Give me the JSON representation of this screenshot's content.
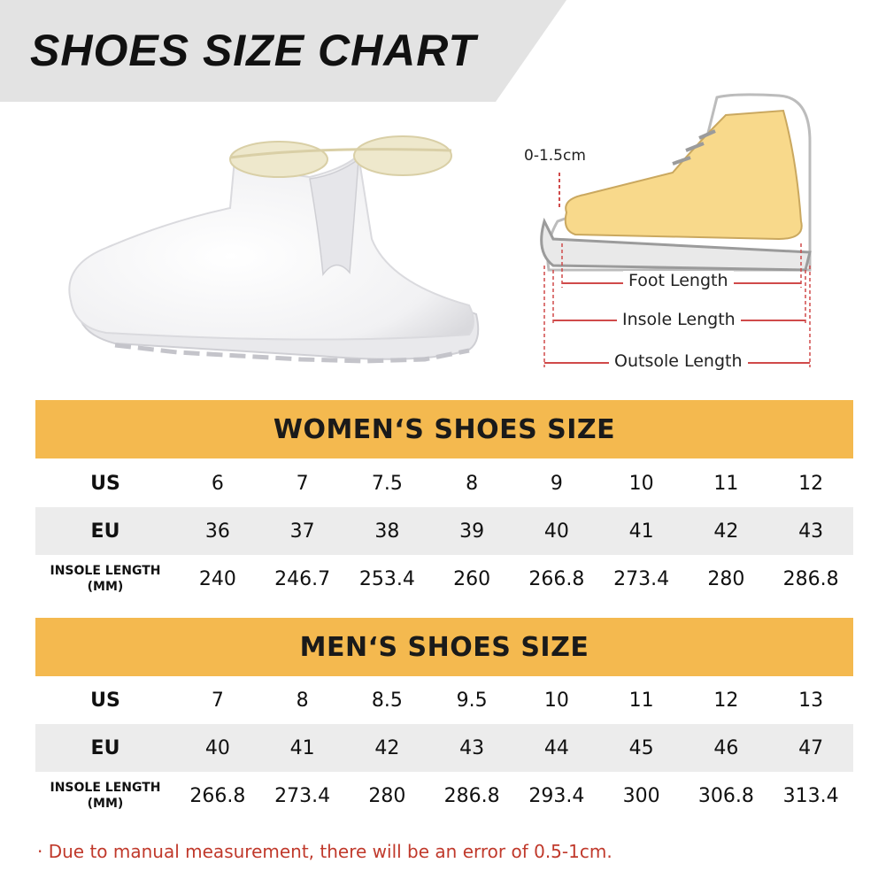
{
  "title": "SHOES SIZE CHART",
  "diagram": {
    "margin_label": "0-1.5cm",
    "foot_length": "Foot Length",
    "insole_length": "Insole Length",
    "outsole_length": "Outsole Length"
  },
  "women": {
    "heading": "WOMEN‘S SHOES SIZE",
    "us_label": "US",
    "eu_label": "EU",
    "insole_label_line1": "INSOLE LENGTH",
    "insole_label_line2": "(MM)",
    "us": [
      "6",
      "7",
      "7.5",
      "8",
      "9",
      "10",
      "11",
      "12"
    ],
    "eu": [
      "36",
      "37",
      "38",
      "39",
      "40",
      "41",
      "42",
      "43"
    ],
    "insole": [
      "240",
      "246.7",
      "253.4",
      "260",
      "266.8",
      "273.4",
      "280",
      "286.8"
    ]
  },
  "men": {
    "heading": "MEN‘S SHOES SIZE",
    "us_label": "US",
    "eu_label": "EU",
    "insole_label_line1": "INSOLE LENGTH",
    "insole_label_line2": "(MM)",
    "us": [
      "7",
      "8",
      "8.5",
      "9.5",
      "10",
      "11",
      "12",
      "13"
    ],
    "eu": [
      "40",
      "41",
      "42",
      "43",
      "44",
      "45",
      "46",
      "47"
    ],
    "insole": [
      "266.8",
      "273.4",
      "280",
      "286.8",
      "293.4",
      "300",
      "306.8",
      "313.4"
    ]
  },
  "note": "· Due to manual measurement, there will be an error of 0.5-1cm.",
  "colors": {
    "header_bg": "#f4b94f",
    "row_shade": "#ececec",
    "note_text": "#c0392b",
    "title_band": "#e3e3e3"
  }
}
